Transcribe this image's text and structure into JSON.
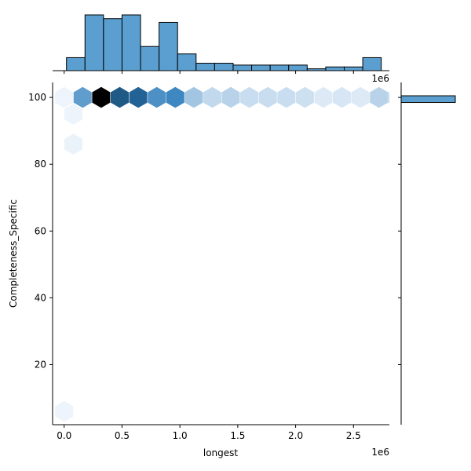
{
  "chart_data": {
    "type": "jointplot-hexbin",
    "xlabel": "longest",
    "ylabel": "Completeness_Specific",
    "x_offset_label": "1e6",
    "xlim": [
      -0.1,
      2.81
    ],
    "ylim": [
      2,
      104.5
    ],
    "x_ticks": [
      0.0,
      0.5,
      1.0,
      1.5,
      2.0,
      2.5
    ],
    "x_tick_labels": [
      "0.0",
      "0.5",
      "1.0",
      "1.5",
      "2.0",
      "2.5"
    ],
    "y_ticks": [
      20,
      40,
      60,
      80,
      100
    ],
    "y_tick_labels": [
      "20",
      "40",
      "60",
      "80",
      "100"
    ],
    "hexbins": [
      {
        "x": 0.0,
        "y": 100,
        "count": 2
      },
      {
        "x": 0.16,
        "y": 100,
        "count": 55
      },
      {
        "x": 0.32,
        "y": 100,
        "count": 100
      },
      {
        "x": 0.48,
        "y": 100,
        "count": 82
      },
      {
        "x": 0.64,
        "y": 100,
        "count": 80
      },
      {
        "x": 0.8,
        "y": 100,
        "count": 62
      },
      {
        "x": 0.96,
        "y": 100,
        "count": 68
      },
      {
        "x": 1.12,
        "y": 100,
        "count": 30
      },
      {
        "x": 1.28,
        "y": 100,
        "count": 18
      },
      {
        "x": 1.44,
        "y": 100,
        "count": 22
      },
      {
        "x": 1.6,
        "y": 100,
        "count": 16
      },
      {
        "x": 1.76,
        "y": 100,
        "count": 16
      },
      {
        "x": 1.92,
        "y": 100,
        "count": 16
      },
      {
        "x": 2.08,
        "y": 100,
        "count": 14
      },
      {
        "x": 2.24,
        "y": 100,
        "count": 8
      },
      {
        "x": 2.4,
        "y": 100,
        "count": 10
      },
      {
        "x": 2.56,
        "y": 100,
        "count": 8
      },
      {
        "x": 2.72,
        "y": 100,
        "count": 22
      },
      {
        "x": 2.88,
        "y": 100,
        "count": 24
      },
      {
        "x": 0.08,
        "y": 95,
        "count": 2
      },
      {
        "x": 0.08,
        "y": 86,
        "count": 3
      },
      {
        "x": 0.0,
        "y": 6,
        "count": 2
      }
    ],
    "x_marginal": {
      "bin_edges": [
        0.02,
        0.18,
        0.34,
        0.5,
        0.66,
        0.82,
        0.98,
        1.14,
        1.3,
        1.46,
        1.62,
        1.78,
        1.94,
        2.1,
        2.26,
        2.42,
        2.58,
        2.74
      ],
      "counts": [
        7,
        30,
        28,
        30,
        13,
        26,
        9,
        4,
        4,
        3,
        3,
        3,
        3,
        1,
        2,
        2,
        7
      ]
    },
    "y_marginal": {
      "bins": [
        {
          "y0": 98.5,
          "y1": 100.5,
          "count": 230
        }
      ],
      "max_count": 230
    },
    "colors": {
      "bar_fill": "#5a9fcf",
      "bar_edge": "#000000",
      "hex_low": "#f2f7fd",
      "hex_mid": "#2b7bba",
      "hex_high": "#000000"
    }
  }
}
